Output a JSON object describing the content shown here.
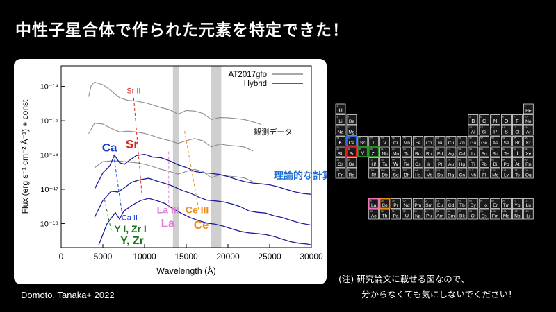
{
  "slide": {
    "title": "中性子星合体で作られた元素を特定できた！",
    "credit": "Domoto, Tanaka+ 2022",
    "note_line1": "(注) 研究論文に載せる図なので、",
    "note_line2": "分からなくても気にしないでください！"
  },
  "chart_data": {
    "type": "line",
    "xlabel": "Wavelength (Å)",
    "ylabel": "Flux (erg s⁻¹ cm⁻² Å⁻¹) + const",
    "xlim": [
      0,
      30000
    ],
    "ylim_log10": [
      -18.7,
      -13.4
    ],
    "yscale": "log",
    "x_ticks": [
      0,
      5000,
      10000,
      15000,
      20000,
      25000,
      30000
    ],
    "y_tick_labels": [
      "10⁻¹⁴",
      "10⁻¹⁵",
      "10⁻¹⁶",
      "10⁻¹⁷",
      "10⁻¹⁸"
    ],
    "y_tick_exponents": [
      -14,
      -15,
      -16,
      -17,
      -18
    ],
    "legend_position": "top-right",
    "legend": [
      "AT2017gfo",
      "Hybrid"
    ],
    "series_colors": {
      "observed": "#8c8c8c",
      "model": "#1c1c9c"
    },
    "series": [
      {
        "name": "AT2017gfo",
        "group": "observed",
        "x": [
          3300,
          3600,
          4000,
          5000,
          6000,
          7000,
          8000,
          9000,
          10000,
          11000,
          12000,
          13000,
          14000,
          15000,
          16000,
          17000,
          18000,
          19000,
          20000,
          21000,
          22000,
          23000,
          24000
        ],
        "log_flux": [
          -14.3,
          -14.0,
          -13.9,
          -13.95,
          -14.1,
          -14.3,
          -14.4,
          -14.45,
          -14.5,
          -14.55,
          -14.6,
          -14.65,
          -14.8,
          -14.72,
          -14.75,
          -14.8,
          -14.95,
          -14.88,
          -14.9,
          -14.95,
          -15.0,
          -15.05,
          -15.1
        ]
      },
      {
        "group": "observed",
        "x": [
          3300,
          4000,
          5000,
          6000,
          7000,
          8000,
          9000,
          10000,
          11000,
          12000,
          13000,
          14000,
          15000,
          16000,
          17000,
          18000,
          19000,
          20000,
          21000,
          22000,
          23000
        ],
        "log_flux": [
          -15.4,
          -15.1,
          -15.1,
          -15.2,
          -15.3,
          -15.3,
          -15.35,
          -15.4,
          -15.45,
          -15.5,
          -15.55,
          -15.65,
          -15.6,
          -15.55,
          -15.6,
          -15.75,
          -15.65,
          -15.7,
          -15.75,
          -15.8,
          -15.9
        ]
      },
      {
        "group": "observed",
        "x": [
          4000,
          5000,
          6000,
          7000,
          8000,
          9000,
          10000,
          11000,
          12000,
          13000,
          14000,
          15000,
          16000,
          17000,
          18000,
          19000,
          20000,
          21000,
          22000,
          23000
        ],
        "log_flux": [
          -16.4,
          -16.2,
          -16.15,
          -16.15,
          -16.2,
          -16.25,
          -16.3,
          -16.35,
          -16.4,
          -16.45,
          -16.55,
          -16.5,
          -16.45,
          -16.5,
          -16.65,
          -16.55,
          -16.6,
          -16.65,
          -16.7,
          -16.8
        ]
      },
      {
        "name": "Hybrid",
        "group": "model",
        "x": [
          4000,
          5000,
          5800,
          6400,
          7000,
          7600,
          8000,
          9000,
          10000,
          11000,
          12000,
          13000,
          14000,
          15000,
          16000,
          17000,
          18000,
          19000,
          20000,
          21000,
          22000,
          23000,
          24000,
          25000,
          26000,
          27000,
          28000,
          29000,
          30000
        ],
        "log_flux": [
          -17.0,
          -16.5,
          -16.3,
          -16.0,
          -16.25,
          -16.3,
          -16.2,
          -16.0,
          -15.95,
          -16.05,
          -16.1,
          -16.2,
          -16.3,
          -16.35,
          -16.45,
          -16.5,
          -16.55,
          -16.6,
          -16.65,
          -16.7,
          -16.75,
          -16.8,
          -16.85,
          -16.9,
          -16.95,
          -17.0,
          -17.05,
          -17.1,
          -17.15
        ]
      },
      {
        "group": "model",
        "x": [
          4000,
          5000,
          6000,
          6800,
          7500,
          8500,
          9500,
          10500,
          11500,
          12500,
          13500,
          14500,
          15500,
          16500,
          17500,
          18500,
          19500,
          20500,
          21500,
          22500,
          23500,
          24500,
          25500,
          26500,
          27500,
          28500,
          29500,
          30000
        ],
        "log_flux": [
          -17.8,
          -17.3,
          -17.05,
          -17.1,
          -17.0,
          -16.8,
          -16.7,
          -16.65,
          -16.75,
          -16.85,
          -16.95,
          -17.05,
          -17.1,
          -17.2,
          -17.3,
          -17.35,
          -17.4,
          -17.45,
          -17.5,
          -17.6,
          -17.65,
          -17.7,
          -17.8,
          -17.85,
          -17.9,
          -17.95,
          -18.0,
          -18.05
        ]
      },
      {
        "group": "model",
        "x": [
          4500,
          5500,
          6500,
          7000,
          7500,
          8500,
          9500,
          10500,
          11500,
          12500,
          13500,
          14500,
          15500,
          16500,
          17500,
          18500,
          19500,
          20500,
          21500,
          22500,
          23500,
          24500,
          25500,
          26500,
          27500,
          28500,
          29500,
          30000
        ],
        "log_flux": [
          -18.6,
          -18.0,
          -17.7,
          -17.9,
          -17.65,
          -17.45,
          -17.3,
          -17.25,
          -17.35,
          -17.45,
          -17.6,
          -17.7,
          -17.8,
          -17.9,
          -18.0,
          -18.05,
          -18.1,
          -18.15,
          -18.2,
          -18.25,
          -18.3,
          -18.35,
          -18.4,
          -18.45,
          -18.5,
          -18.55,
          -18.6,
          -18.65
        ]
      }
    ],
    "shaded_bands": [
      [
        13400,
        14100
      ],
      [
        18000,
        19200
      ]
    ],
    "annotations": [
      {
        "text": "Sr II",
        "color": "#d62020",
        "x": 8700,
        "log_flux": -14.2
      },
      {
        "text": "Sr",
        "color": "#d62020",
        "x": 8500,
        "log_flux": -15.8,
        "bold": true
      },
      {
        "text": "Ca",
        "color": "#1a3fd0",
        "x": 5800,
        "log_flux": -15.9,
        "bold": true
      },
      {
        "text": "Ca II",
        "color": "#1a3fd0",
        "x": 8200,
        "log_flux": -17.9
      },
      {
        "text": "Y I, Zr I",
        "color": "#1a7a1a",
        "x": 8300,
        "log_flux": -18.25
      },
      {
        "text": "Y, Zr",
        "color": "#1a7a1a",
        "x": 8500,
        "log_flux": -18.6,
        "bold": true
      },
      {
        "text": "La III",
        "color": "#e080d0",
        "x": 12800,
        "log_flux": -17.7
      },
      {
        "text": "La",
        "color": "#e080d0",
        "x": 12800,
        "log_flux": -18.1,
        "bold": true
      },
      {
        "text": "Ce III",
        "color": "#f08c1a",
        "x": 16300,
        "log_flux": -17.7
      },
      {
        "text": "Ce",
        "color": "#f08c1a",
        "x": 16800,
        "log_flux": -18.15,
        "bold": true
      },
      {
        "text": "観測データ",
        "color": "#111111",
        "x": 25400,
        "log_flux": -15.4
      },
      {
        "text": "理論的な計算",
        "color": "#1f6fd6",
        "x": 29000,
        "log_flux": -16.7
      }
    ]
  },
  "periodic_table": {
    "rows": [
      [
        "1|H",
        "2|He"
      ],
      [
        "3|Li",
        "4|Be",
        "5|B",
        "6|C",
        "7|N",
        "8|O",
        "9|F",
        "10|Ne"
      ],
      [
        "11|Na",
        "12|Mg",
        "13|Al",
        "14|Si",
        "15|P",
        "16|S",
        "17|Cl",
        "18|Ar"
      ],
      [
        "19|K",
        "20|Ca",
        "21|Sc",
        "22|Ti",
        "23|V",
        "24|Cr",
        "25|Mn",
        "26|Fe",
        "27|Co",
        "28|Ni",
        "29|Cu",
        "30|Zn",
        "31|Ga",
        "32|Ge",
        "33|As",
        "34|Se",
        "35|Br",
        "36|Kr"
      ],
      [
        "37|Rb",
        "38|Sr",
        "39|Y",
        "40|Zr",
        "41|Nb",
        "42|Mo",
        "43|Tc",
        "44|Ru",
        "45|Rh",
        "46|Pd",
        "47|Ag",
        "48|Cd",
        "49|In",
        "50|Sn",
        "51|Sb",
        "52|Te",
        "53|I",
        "54|Xe"
      ],
      [
        "55|Cs",
        "56|Ba",
        "",
        "72|Hf",
        "73|Ta",
        "74|W",
        "75|Re",
        "76|Os",
        "77|Ir",
        "78|Pt",
        "79|Au",
        "80|Hg",
        "81|Tl",
        "82|Pb",
        "83|Bi",
        "84|Po",
        "85|At",
        "86|Rn"
      ],
      [
        "87|Fr",
        "88|Ra",
        "",
        "104|Rf",
        "105|Db",
        "106|Sg",
        "107|Bh",
        "108|Hs",
        "109|Mt",
        "110|Ds",
        "111|Rg",
        "112|Cn",
        "113|Nh",
        "114|Fl",
        "115|Mc",
        "116|Lv",
        "117|Ts",
        "118|Og"
      ]
    ],
    "lanthanides": [
      "57|La",
      "58|Ce",
      "59|Pr",
      "60|Nd",
      "61|Pm",
      "62|Sm",
      "63|Eu",
      "64|Gd",
      "65|Tb",
      "66|Dy",
      "67|Ho",
      "68|Er",
      "69|Tm",
      "70|Yb",
      "71|Lu"
    ],
    "actinides": [
      "89|Ac",
      "90|Th",
      "91|Pa",
      "92|U",
      "93|Np",
      "94|Pu",
      "95|Am",
      "96|Cm",
      "97|Bk",
      "98|Cf",
      "99|Es",
      "100|Fm",
      "101|Md",
      "102|No",
      "103|Lr"
    ],
    "highlights": {
      "Ca": "#2a6ee0",
      "Sr": "#e02020",
      "Y": "#2a9a2a",
      "Zr": "#2a9a2a",
      "La": "#e87ab8",
      "Ce": "#f08c1a"
    }
  }
}
